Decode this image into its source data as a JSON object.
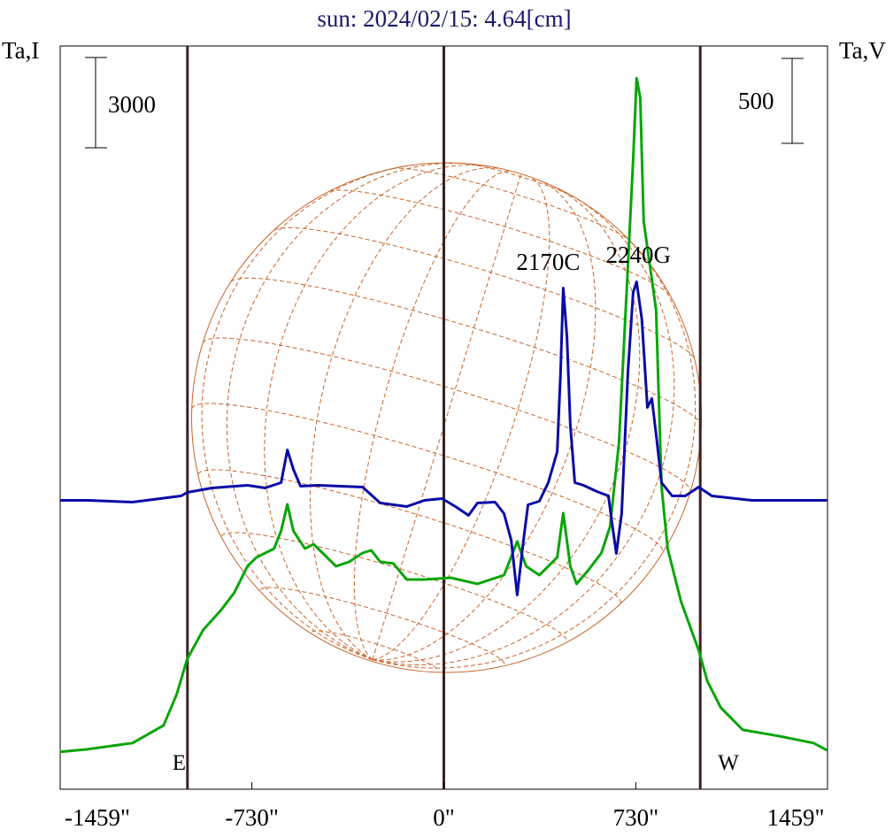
{
  "chart_data": {
    "type": "line",
    "title": "sun: 2024/02/15: 4.64[cm]",
    "left_axis_label": "Ta,I",
    "right_axis_label": "Ta,V",
    "left_scale_bar": {
      "label": "3000",
      "value": 3000
    },
    "right_scale_bar": {
      "label": "500",
      "value": 500
    },
    "x_unit": "arcsec",
    "xlim": [
      -1459,
      1459
    ],
    "x_ticks": [
      {
        "value": -1459,
        "label": "-1459\""
      },
      {
        "value": -730,
        "label": "-730\""
      },
      {
        "value": 0,
        "label": "0\""
      },
      {
        "value": 730,
        "label": "730\""
      },
      {
        "value": 1459,
        "label": "1459\""
      }
    ],
    "limb_markers": [
      {
        "value": -975,
        "label": "E"
      },
      {
        "value": 0,
        "label": ""
      },
      {
        "value": 975,
        "label": "W"
      }
    ],
    "solar_radius_arcsec": 970,
    "ylim_I": [
      -9600,
      15100
    ],
    "ylim_V": [
      -220,
      4160
    ],
    "annotations": [
      {
        "label": "2170C",
        "x": 454
      },
      {
        "label": "2240G",
        "x": 733
      }
    ],
    "colors": {
      "I": "#0a0aa8",
      "V": "#0aa50a",
      "limb": "#3a2222",
      "grid": "#c8642a",
      "title": "#1a1a6a"
    },
    "series": [
      {
        "name": "I",
        "axis": "left",
        "x": [
          -1460,
          -1352,
          -1184,
          -999,
          -976,
          -881,
          -747,
          -680,
          -619,
          -595,
          -572,
          -545,
          -478,
          -309,
          -242,
          -141,
          -74,
          -7,
          44,
          94,
          128,
          195,
          229,
          256,
          279,
          303,
          320,
          363,
          397,
          431,
          444,
          454,
          468,
          481,
          498,
          531,
          582,
          626,
          639,
          656,
          676,
          700,
          720,
          733,
          753,
          774,
          791,
          807,
          828,
          868,
          918,
          969,
          1019,
          1171,
          1457
        ],
        "values": [
          0,
          0,
          -59,
          147,
          265,
          412,
          500,
          412,
          588,
          1676,
          1029,
          470,
          500,
          441,
          -88,
          -206,
          0,
          59,
          -206,
          -500,
          -88,
          -59,
          -441,
          -1323,
          -3146,
          -1323,
          -147,
          -29,
          588,
          1617,
          4263,
          7056,
          5439,
          2499,
          588,
          500,
          294,
          147,
          -735,
          -1764,
          -441,
          4263,
          6909,
          7262,
          6027,
          3087,
          3381,
          2205,
          588,
          147,
          147,
          441,
          147,
          0,
          0
        ]
      },
      {
        "name": "V",
        "axis": "right",
        "x": [
          -1460,
          -1352,
          -1184,
          -1066,
          -1016,
          -976,
          -915,
          -848,
          -797,
          -747,
          -713,
          -646,
          -619,
          -595,
          -572,
          -528,
          -495,
          -461,
          -410,
          -360,
          -309,
          -276,
          -242,
          -192,
          -141,
          -74,
          27,
          128,
          229,
          279,
          313,
          363,
          431,
          454,
          481,
          505,
          548,
          599,
          632,
          666,
          700,
          720,
          733,
          747,
          760,
          784,
          807,
          828,
          851,
          902,
          969,
          1002,
          1053,
          1137,
          1272,
          1406,
          1457
        ],
        "values": [
          0,
          16,
          52,
          156,
          339,
          547,
          719,
          834,
          938,
          1094,
          1146,
          1198,
          1302,
          1459,
          1302,
          1198,
          1224,
          1172,
          1094,
          1120,
          1172,
          1188,
          1120,
          1110,
          1016,
          1016,
          1026,
          990,
          1042,
          1240,
          1094,
          1042,
          1146,
          1407,
          1094,
          990,
          1068,
          1172,
          1328,
          1823,
          2865,
          3491,
          3970,
          3855,
          3126,
          2865,
          2605,
          1563,
          1198,
          886,
          599,
          417,
          261,
          130,
          94,
          52,
          10
        ]
      }
    ]
  }
}
